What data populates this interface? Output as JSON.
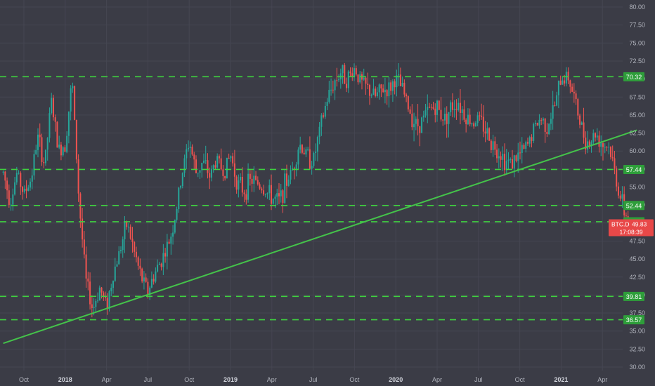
{
  "chart_data": {
    "type": "candlestick",
    "symbol_label": "BTC.D",
    "last_price_label": "49.83",
    "countdown_label": "17:08:39",
    "last_price": 49.83,
    "colors": {
      "background": "#3b3c46",
      "grid": "#454652",
      "axis_text": "#b2b5be",
      "up": "#26a69a",
      "down": "#ef5350",
      "level_line": "#3fd13f",
      "level_badge": "#2e9e3a",
      "trendline": "#44c34a",
      "price_badge": "#e84848"
    },
    "y_axis": {
      "min": 30,
      "max": 80,
      "ticks": [
        "30.00",
        "32.50",
        "35.00",
        "37.50",
        "40.00",
        "42.50",
        "45.00",
        "47.50",
        "50.00",
        "52.50",
        "55.00",
        "57.50",
        "60.00",
        "62.50",
        "65.00",
        "67.50",
        "70.00",
        "72.50",
        "75.00",
        "77.50",
        "80.00"
      ]
    },
    "x_axis": {
      "labels": [
        {
          "text": "Oct",
          "month": 0,
          "bold": false
        },
        {
          "text": "2018",
          "month": 3,
          "bold": true
        },
        {
          "text": "Apr",
          "month": 6,
          "bold": false
        },
        {
          "text": "Jul",
          "month": 9,
          "bold": false
        },
        {
          "text": "Oct",
          "month": 12,
          "bold": false
        },
        {
          "text": "2019",
          "month": 15,
          "bold": true
        },
        {
          "text": "Apr",
          "month": 18,
          "bold": false
        },
        {
          "text": "Jul",
          "month": 21,
          "bold": false
        },
        {
          "text": "Oct",
          "month": 24,
          "bold": false
        },
        {
          "text": "2020",
          "month": 27,
          "bold": true
        },
        {
          "text": "Apr",
          "month": 30,
          "bold": false
        },
        {
          "text": "Jul",
          "month": 33,
          "bold": false
        },
        {
          "text": "Oct",
          "month": 36,
          "bold": false
        },
        {
          "text": "2021",
          "month": 39,
          "bold": true
        },
        {
          "text": "Apr",
          "month": 42,
          "bold": false
        }
      ]
    },
    "horizontal_levels": [
      {
        "value": 70.32,
        "label": "70.32"
      },
      {
        "value": 57.44,
        "label": "57.44"
      },
      {
        "value": 52.44,
        "label": "52.44"
      },
      {
        "value": 50.18,
        "label": "50.18"
      },
      {
        "value": 39.81,
        "label": "39.81"
      },
      {
        "value": 36.57,
        "label": "36.57"
      }
    ],
    "trendline": {
      "start": {
        "month": -1.5,
        "value": 33.3
      },
      "end": {
        "month": 44.5,
        "value": 62.9
      }
    },
    "price_path": [
      [
        -1.5,
        57.0
      ],
      [
        -1.0,
        53.0
      ],
      [
        -0.5,
        57.0
      ],
      [
        0.0,
        54.0
      ],
      [
        0.5,
        56.0
      ],
      [
        1.0,
        62.0
      ],
      [
        1.5,
        58.0
      ],
      [
        2.0,
        67.0
      ],
      [
        2.5,
        60.0
      ],
      [
        3.0,
        61.0
      ],
      [
        3.5,
        70.0
      ],
      [
        4.0,
        53.0
      ],
      [
        4.5,
        42.0
      ],
      [
        5.0,
        38.0
      ],
      [
        5.5,
        41.0
      ],
      [
        6.0,
        38.5
      ],
      [
        6.5,
        43.0
      ],
      [
        7.0,
        46.5
      ],
      [
        7.5,
        50.0
      ],
      [
        8.0,
        46.0
      ],
      [
        8.5,
        42.5
      ],
      [
        9.0,
        40.5
      ],
      [
        9.5,
        43.0
      ],
      [
        10.0,
        45.0
      ],
      [
        10.5,
        47.0
      ],
      [
        11.0,
        51.0
      ],
      [
        11.5,
        57.0
      ],
      [
        12.0,
        61.5
      ],
      [
        12.5,
        57.0
      ],
      [
        13.0,
        58.5
      ],
      [
        13.5,
        56.5
      ],
      [
        14.0,
        59.0
      ],
      [
        14.5,
        57.0
      ],
      [
        15.0,
        59.5
      ],
      [
        15.5,
        55.5
      ],
      [
        16.0,
        54.5
      ],
      [
        16.5,
        56.0
      ],
      [
        17.0,
        55.5
      ],
      [
        17.5,
        54.5
      ],
      [
        18.0,
        53.5
      ],
      [
        18.5,
        53.0
      ],
      [
        19.0,
        55.5
      ],
      [
        19.5,
        57.5
      ],
      [
        20.0,
        61.0
      ],
      [
        20.5,
        59.5
      ],
      [
        21.0,
        58.5
      ],
      [
        21.5,
        63.0
      ],
      [
        22.0,
        67.0
      ],
      [
        22.5,
        69.5
      ],
      [
        23.0,
        71.0
      ],
      [
        23.5,
        70.0
      ],
      [
        24.0,
        71.5
      ],
      [
        24.5,
        69.5
      ],
      [
        25.0,
        68.5
      ],
      [
        25.5,
        67.5
      ],
      [
        26.0,
        68.5
      ],
      [
        26.5,
        68.5
      ],
      [
        27.0,
        70.0
      ],
      [
        27.5,
        68.5
      ],
      [
        28.0,
        65.5
      ],
      [
        28.5,
        63.5
      ],
      [
        29.0,
        64.5
      ],
      [
        29.5,
        66.0
      ],
      [
        30.0,
        66.0
      ],
      [
        30.5,
        64.5
      ],
      [
        31.0,
        66.0
      ],
      [
        31.5,
        67.0
      ],
      [
        32.0,
        65.0
      ],
      [
        32.5,
        64.0
      ],
      [
        33.0,
        64.5
      ],
      [
        33.5,
        63.0
      ],
      [
        34.0,
        61.0
      ],
      [
        34.5,
        60.0
      ],
      [
        35.0,
        58.5
      ],
      [
        35.5,
        58.5
      ],
      [
        36.0,
        59.5
      ],
      [
        36.5,
        60.5
      ],
      [
        37.0,
        63.0
      ],
      [
        37.5,
        64.5
      ],
      [
        38.0,
        63.5
      ],
      [
        38.5,
        66.0
      ],
      [
        39.0,
        70.0
      ],
      [
        39.5,
        70.5
      ],
      [
        40.0,
        67.0
      ],
      [
        40.5,
        63.0
      ],
      [
        41.0,
        61.0
      ],
      [
        41.5,
        62.5
      ],
      [
        42.0,
        61.0
      ],
      [
        42.5,
        60.5
      ],
      [
        43.0,
        56.0
      ],
      [
        43.5,
        52.0
      ],
      [
        44.0,
        49.83
      ]
    ]
  }
}
